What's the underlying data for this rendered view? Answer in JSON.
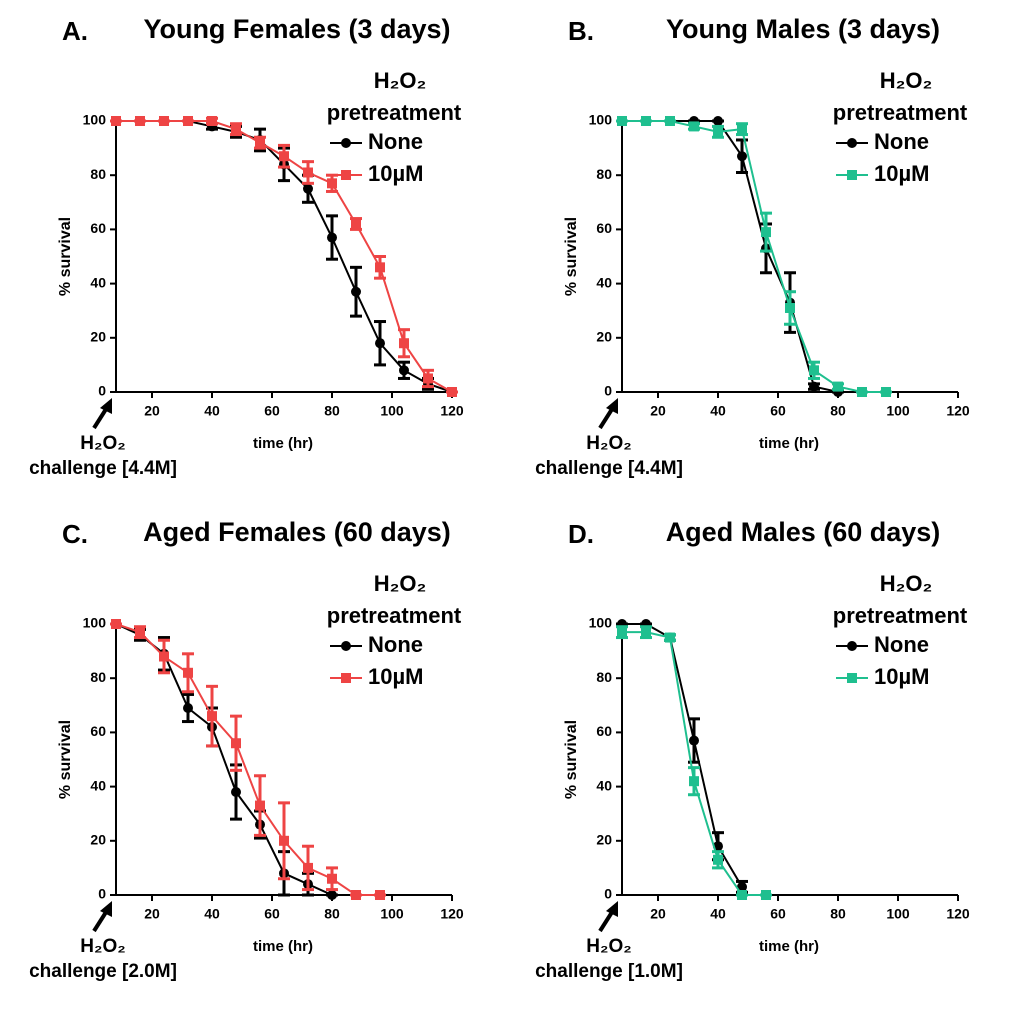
{
  "chart_data": [
    {
      "type": "line",
      "panel": "A.",
      "title": "Young Females (3 days)",
      "legend_title": [
        "H₂O₂",
        "pretreatment"
      ],
      "annotation": [
        "H₂O₂",
        "challenge [4.4M]"
      ],
      "xlabel": "time (hr)",
      "ylabel": "% survival",
      "x": [
        8,
        16,
        24,
        32,
        40,
        48,
        56,
        64,
        72,
        80,
        88,
        96,
        104,
        112,
        120
      ],
      "xlim": [
        8,
        120
      ],
      "xticks": [
        20,
        40,
        60,
        80,
        100,
        120
      ],
      "ylim": [
        0,
        100
      ],
      "yticks": [
        0,
        20,
        40,
        60,
        80,
        100
      ],
      "series": [
        {
          "name": "None",
          "color": "#000000",
          "marker": "circle",
          "values": [
            100,
            100,
            100,
            100,
            98,
            96,
            93,
            84,
            75,
            57,
            37,
            18,
            8,
            3,
            0
          ],
          "errors": [
            0,
            0,
            0,
            0,
            1,
            2,
            4,
            6,
            5,
            8,
            9,
            8,
            3,
            2,
            0
          ]
        },
        {
          "name": "10µM",
          "color": "#ee4444",
          "marker": "square",
          "values": [
            100,
            100,
            100,
            100,
            100,
            97,
            92,
            87,
            81,
            77,
            62,
            46,
            18,
            5,
            0
          ],
          "errors": [
            0,
            0,
            0,
            0,
            1,
            2,
            2,
            4,
            4,
            3,
            2,
            4,
            5,
            3,
            0
          ]
        }
      ]
    },
    {
      "type": "line",
      "panel": "B.",
      "title": "Young Males (3 days)",
      "legend_title": [
        "H₂O₂",
        "pretreatment"
      ],
      "annotation": [
        "H₂O₂",
        "challenge [4.4M]"
      ],
      "xlabel": "time (hr)",
      "ylabel": "% survival",
      "x": [
        8,
        16,
        24,
        32,
        40,
        48,
        56,
        64,
        72,
        80,
        88,
        96
      ],
      "xlim": [
        8,
        120
      ],
      "xticks": [
        20,
        40,
        60,
        80,
        100,
        120
      ],
      "ylim": [
        0,
        100
      ],
      "yticks": [
        0,
        20,
        40,
        60,
        80,
        100
      ],
      "series": [
        {
          "name": "None",
          "color": "#000000",
          "marker": "circle",
          "values": [
            100,
            100,
            100,
            100,
            100,
            87,
            53,
            33,
            2,
            0,
            null,
            null
          ],
          "errors": [
            0,
            0,
            0,
            0,
            0,
            6,
            9,
            11,
            1,
            0,
            null,
            null
          ]
        },
        {
          "name": "10µM",
          "color": "#1fbf8f",
          "marker": "square",
          "values": [
            100,
            100,
            100,
            98,
            96,
            97,
            59,
            31,
            8,
            2,
            0,
            0
          ],
          "errors": [
            0,
            0,
            0,
            1,
            2,
            2,
            7,
            6,
            3,
            1,
            0,
            0
          ]
        }
      ]
    },
    {
      "type": "line",
      "panel": "C.",
      "title": "Aged Females (60 days)",
      "legend_title": [
        "H₂O₂",
        "pretreatment"
      ],
      "annotation": [
        "H₂O₂",
        "challenge [2.0M]"
      ],
      "xlabel": "time (hr)",
      "ylabel": "% survival",
      "x": [
        8,
        16,
        24,
        32,
        40,
        48,
        56,
        64,
        72,
        80,
        88,
        96
      ],
      "xlim": [
        8,
        120
      ],
      "xticks": [
        20,
        40,
        60,
        80,
        100,
        120
      ],
      "ylim": [
        0,
        100
      ],
      "yticks": [
        0,
        20,
        40,
        60,
        80,
        100
      ],
      "series": [
        {
          "name": "None",
          "color": "#000000",
          "marker": "circle",
          "values": [
            100,
            96,
            89,
            69,
            62,
            38,
            26,
            8,
            4,
            0,
            null,
            null
          ],
          "errors": [
            0,
            2,
            6,
            5,
            7,
            10,
            5,
            8,
            4,
            0,
            null,
            null
          ]
        },
        {
          "name": "10µM",
          "color": "#ee4444",
          "marker": "square",
          "values": [
            100,
            97,
            88,
            82,
            66,
            56,
            33,
            20,
            10,
            6,
            0,
            0
          ],
          "errors": [
            0,
            2,
            6,
            7,
            11,
            10,
            11,
            14,
            8,
            4,
            0,
            0
          ]
        }
      ]
    },
    {
      "type": "line",
      "panel": "D.",
      "title": "Aged Males (60 days)",
      "legend_title": [
        "H₂O₂",
        "pretreatment"
      ],
      "annotation": [
        "H₂O₂",
        "challenge [1.0M]"
      ],
      "xlabel": "time (hr)",
      "ylabel": "% survival",
      "x": [
        8,
        16,
        24,
        32,
        40,
        48,
        56
      ],
      "xlim": [
        8,
        120
      ],
      "xticks": [
        20,
        40,
        60,
        80,
        100,
        120
      ],
      "ylim": [
        0,
        100
      ],
      "yticks": [
        0,
        20,
        40,
        60,
        80,
        100
      ],
      "series": [
        {
          "name": "None",
          "color": "#000000",
          "marker": "circle",
          "values": [
            100,
            100,
            95,
            57,
            18,
            3,
            null
          ],
          "errors": [
            0,
            0,
            1,
            8,
            5,
            2,
            null
          ]
        },
        {
          "name": "10µM",
          "color": "#1fbf8f",
          "marker": "square",
          "values": [
            97,
            97,
            95,
            42,
            13,
            0,
            0
          ],
          "errors": [
            2,
            2,
            1,
            5,
            3,
            0,
            0
          ]
        }
      ]
    }
  ]
}
